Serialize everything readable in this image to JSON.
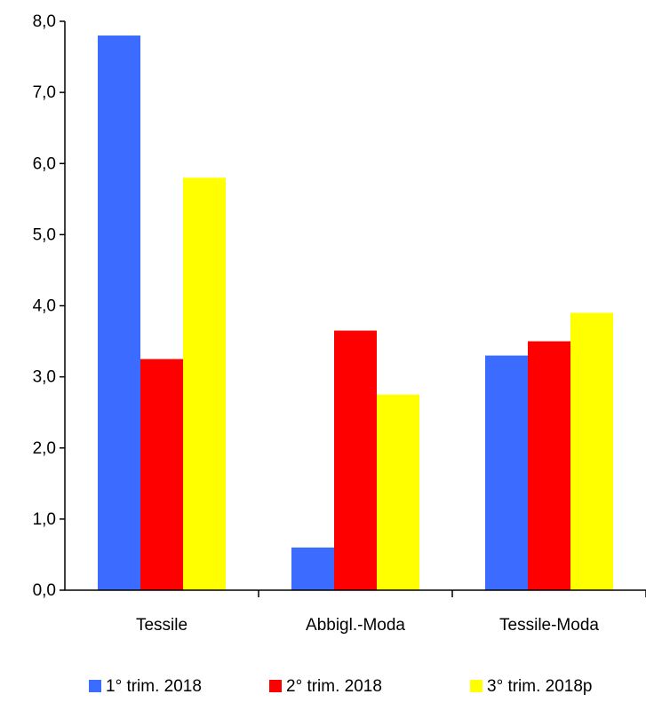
{
  "chart_data": {
    "type": "bar",
    "categories": [
      "Tessile",
      "Abbigl.-Moda",
      "Tessile-Moda"
    ],
    "series": [
      {
        "name": "1° trim. 2018",
        "color": "#3b6cff",
        "values": [
          7.8,
          0.6,
          3.3
        ]
      },
      {
        "name": "2° trim. 2018",
        "color": "#ff0000",
        "values": [
          3.25,
          3.65,
          3.5
        ]
      },
      {
        "name": "3° trim. 2018p",
        "color": "#ffff00",
        "values": [
          5.8,
          2.75,
          3.9
        ]
      }
    ],
    "ylim": [
      0,
      8
    ],
    "yticks": [
      "0,0",
      "1,0",
      "2,0",
      "3,0",
      "4,0",
      "5,0",
      "6,0",
      "7,0",
      "8,0"
    ],
    "grid": false,
    "legend_position": "bottom"
  }
}
